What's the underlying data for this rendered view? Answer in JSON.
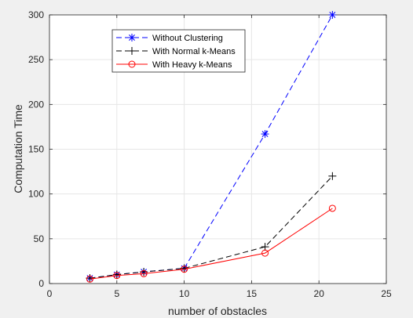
{
  "chart_data": {
    "type": "line",
    "title": "",
    "xlabel": "number of obstacles",
    "ylabel": "Computation Time",
    "xlim": [
      0,
      25
    ],
    "ylim": [
      0,
      300
    ],
    "xticks": [
      0,
      5,
      10,
      15,
      20,
      25
    ],
    "yticks": [
      0,
      50,
      100,
      150,
      200,
      250,
      300
    ],
    "grid": true,
    "legend_location": "top-left",
    "x": [
      3,
      5,
      7,
      10,
      16,
      21
    ],
    "series": [
      {
        "name": "Without Clustering",
        "values": [
          6,
          10,
          13,
          17,
          167,
          300
        ],
        "color": "#0000ff",
        "line_style": "dashed",
        "marker": "asterisk"
      },
      {
        "name": "With Normal k-Means",
        "values": [
          6,
          10,
          13,
          17,
          41,
          120
        ],
        "color": "#000000",
        "line_style": "dashed",
        "marker": "plus"
      },
      {
        "name": "With Heavy k-Means",
        "values": [
          5,
          9,
          11,
          16,
          34,
          84
        ],
        "color": "#ff0000",
        "line_style": "solid",
        "marker": "circle"
      }
    ]
  }
}
